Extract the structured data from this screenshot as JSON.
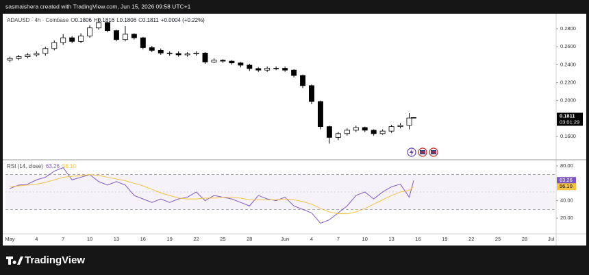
{
  "header": {
    "attribution": "sasmaishera created with TradingView.com, Jun 15, 2026 09:58 UTC+1",
    "logo": "TradingView"
  },
  "chart_data": [
    {
      "type": "candlestick",
      "title": "ADAUSD · 4h · Coinbase",
      "ohlc_legend": [
        {
          "label": "O",
          "value": "0.1806"
        },
        {
          "label": "H",
          "value": "0.1816"
        },
        {
          "label": "L",
          "value": "0.1806"
        },
        {
          "label": "C",
          "value": "0.1811"
        }
      ],
      "change": "+0.0004 (+0.22%)",
      "countdown": "03:01:29",
      "x": [
        0,
        1,
        2,
        3,
        4,
        5,
        6,
        7,
        8,
        9,
        10,
        11,
        12,
        13,
        14,
        15,
        16,
        17,
        18,
        19,
        20,
        21,
        22,
        23,
        24,
        25,
        26,
        27,
        28,
        29,
        30,
        31,
        32,
        33,
        34,
        35,
        36,
        37,
        38,
        39,
        40,
        41,
        42,
        43,
        44,
        45,
        45.5
      ],
      "open": [
        0.245,
        0.247,
        0.249,
        0.251,
        0.2525,
        0.258,
        0.2647,
        0.27,
        0.266,
        0.272,
        0.281,
        0.287,
        0.278,
        0.268,
        0.274,
        0.27,
        0.259,
        0.256,
        0.253,
        0.2525,
        0.251,
        0.252,
        0.253,
        0.243,
        0.245,
        0.244,
        0.242,
        0.2395,
        0.2357,
        0.234,
        0.236,
        0.236,
        0.234,
        0.228,
        0.2167,
        0.199,
        0.171,
        0.159,
        0.1632,
        0.167,
        0.17,
        0.167,
        0.1632,
        0.166,
        0.171,
        0.1724,
        0.1806
      ],
      "high": [
        0.249,
        0.251,
        0.253,
        0.255,
        0.26,
        0.267,
        0.274,
        0.272,
        0.275,
        0.284,
        0.292,
        0.288,
        0.279,
        0.283,
        0.275,
        0.271,
        0.261,
        0.258,
        0.255,
        0.255,
        0.254,
        0.255,
        0.254,
        0.247,
        0.246,
        0.245,
        0.243,
        0.241,
        0.237,
        0.238,
        0.238,
        0.238,
        0.235,
        0.229,
        0.218,
        0.2,
        0.172,
        0.165,
        0.169,
        0.172,
        0.171,
        0.168,
        0.168,
        0.173,
        0.175,
        0.186,
        0.1816
      ],
      "low": [
        0.243,
        0.245,
        0.247,
        0.249,
        0.25,
        0.256,
        0.262,
        0.264,
        0.264,
        0.27,
        0.279,
        0.276,
        0.266,
        0.266,
        0.268,
        0.257,
        0.254,
        0.251,
        0.25,
        0.249,
        0.249,
        0.25,
        0.241,
        0.242,
        0.242,
        0.24,
        0.237,
        0.233,
        0.232,
        0.232,
        0.234,
        0.232,
        0.226,
        0.214,
        0.196,
        0.168,
        0.152,
        0.156,
        0.161,
        0.165,
        0.165,
        0.161,
        0.162,
        0.164,
        0.169,
        0.168,
        0.1806
      ],
      "close": [
        0.247,
        0.249,
        0.251,
        0.2525,
        0.258,
        0.2647,
        0.27,
        0.266,
        0.272,
        0.281,
        0.287,
        0.278,
        0.268,
        0.274,
        0.27,
        0.259,
        0.256,
        0.253,
        0.2525,
        0.251,
        0.252,
        0.253,
        0.243,
        0.245,
        0.244,
        0.242,
        0.2395,
        0.2357,
        0.234,
        0.236,
        0.236,
        0.234,
        0.228,
        0.2167,
        0.199,
        0.171,
        0.159,
        0.1632,
        0.167,
        0.17,
        0.167,
        0.1632,
        0.166,
        0.171,
        0.1724,
        0.1806,
        0.1811
      ],
      "up_color": "#ffffff",
      "down_color": "#000000",
      "xlim": [
        -0.5,
        61.4
      ],
      "ylim": [
        0.1348,
        0.2953
      ],
      "yticks": [
        {
          "value": 0.28,
          "label": "0.2800"
        },
        {
          "value": 0.26,
          "label": "0.2600"
        },
        {
          "value": 0.24,
          "label": "0.2400"
        },
        {
          "value": 0.22,
          "label": "0.2200"
        },
        {
          "value": 0.2,
          "label": "0.2000"
        },
        {
          "value": 0.16,
          "label": "0.1600"
        }
      ]
    },
    {
      "type": "line",
      "title": "RSI (14, close)",
      "x": [
        0,
        1,
        2,
        3,
        4,
        5,
        6,
        7,
        8,
        9,
        10,
        11,
        12,
        13,
        14,
        15,
        16,
        17,
        18,
        19,
        20,
        21,
        22,
        23,
        24,
        25,
        26,
        27,
        28,
        29,
        30,
        31,
        32,
        33,
        34,
        35,
        36,
        37,
        38,
        39,
        40,
        41,
        42,
        43,
        44,
        45,
        45.5
      ],
      "series": [
        {
          "color": "#7e57c2",
          "values": [
            54,
            58,
            59,
            64,
            67,
            74,
            78,
            64,
            67,
            70,
            62,
            58,
            62,
            58,
            46,
            42,
            38,
            42,
            38,
            42,
            44,
            50,
            40,
            46,
            44,
            42,
            38,
            34,
            46,
            42,
            40,
            44,
            34,
            30,
            26,
            14,
            18,
            26,
            34,
            46,
            50,
            42,
            50,
            56,
            59,
            44,
            63.26
          ],
          "value_labels": [
            null,
            null,
            null,
            null,
            null,
            null,
            null,
            null,
            null,
            null,
            null,
            null,
            null,
            null,
            null,
            null,
            null,
            null,
            null,
            null,
            null,
            null,
            null,
            null,
            null,
            null,
            null,
            null,
            null,
            null,
            null,
            null,
            null,
            null,
            null,
            null,
            null,
            null,
            null,
            null,
            null,
            null,
            null,
            null,
            null,
            null,
            "63.26"
          ]
        },
        {
          "color": "#f5c242",
          "values": [
            56,
            57,
            58,
            59,
            61,
            64,
            67,
            68,
            69,
            70,
            69,
            67,
            65,
            63,
            60,
            57,
            53,
            49,
            46,
            43,
            42,
            42,
            43,
            43,
            44,
            44,
            43,
            41,
            41,
            41,
            41,
            42,
            41,
            39,
            36,
            31,
            27,
            25,
            25,
            27,
            31,
            36,
            41,
            46,
            50,
            52,
            56.1
          ],
          "value_labels": [
            null,
            null,
            null,
            null,
            null,
            null,
            null,
            null,
            null,
            null,
            null,
            null,
            null,
            null,
            null,
            null,
            null,
            null,
            null,
            null,
            null,
            null,
            null,
            null,
            null,
            null,
            null,
            null,
            null,
            null,
            null,
            null,
            null,
            null,
            null,
            null,
            null,
            null,
            null,
            null,
            null,
            null,
            null,
            null,
            null,
            null,
            "56.10"
          ]
        }
      ],
      "bands": [
        30,
        70
      ],
      "midline": 50,
      "band_color": "#7e57c2",
      "xlim": [
        -0.5,
        61.4
      ],
      "ylim": [
        2.6,
        86.3
      ],
      "yticks": [
        {
          "value": 80,
          "label": "80.00"
        },
        {
          "value": 40,
          "label": "40.00"
        },
        {
          "value": 20,
          "label": "20.00"
        }
      ],
      "xticks": [
        {
          "value": 0,
          "label": "May"
        },
        {
          "value": 3,
          "label": "4"
        },
        {
          "value": 6,
          "label": "7"
        },
        {
          "value": 9,
          "label": "10"
        },
        {
          "value": 12,
          "label": "13"
        },
        {
          "value": 15,
          "label": "16"
        },
        {
          "value": 18,
          "label": "19"
        },
        {
          "value": 21,
          "label": "22"
        },
        {
          "value": 24,
          "label": "25"
        },
        {
          "value": 27,
          "label": "28"
        },
        {
          "value": 31,
          "label": "Jun"
        },
        {
          "value": 34,
          "label": "4"
        },
        {
          "value": 37,
          "label": "7"
        },
        {
          "value": 40,
          "label": "10"
        },
        {
          "value": 43,
          "label": "13"
        },
        {
          "value": 46,
          "label": "16"
        },
        {
          "value": 49,
          "label": "19"
        },
        {
          "value": 52,
          "label": "22"
        },
        {
          "value": 55,
          "label": "25"
        },
        {
          "value": 58,
          "label": "28"
        },
        {
          "value": 61,
          "label": "Jul"
        }
      ]
    }
  ]
}
